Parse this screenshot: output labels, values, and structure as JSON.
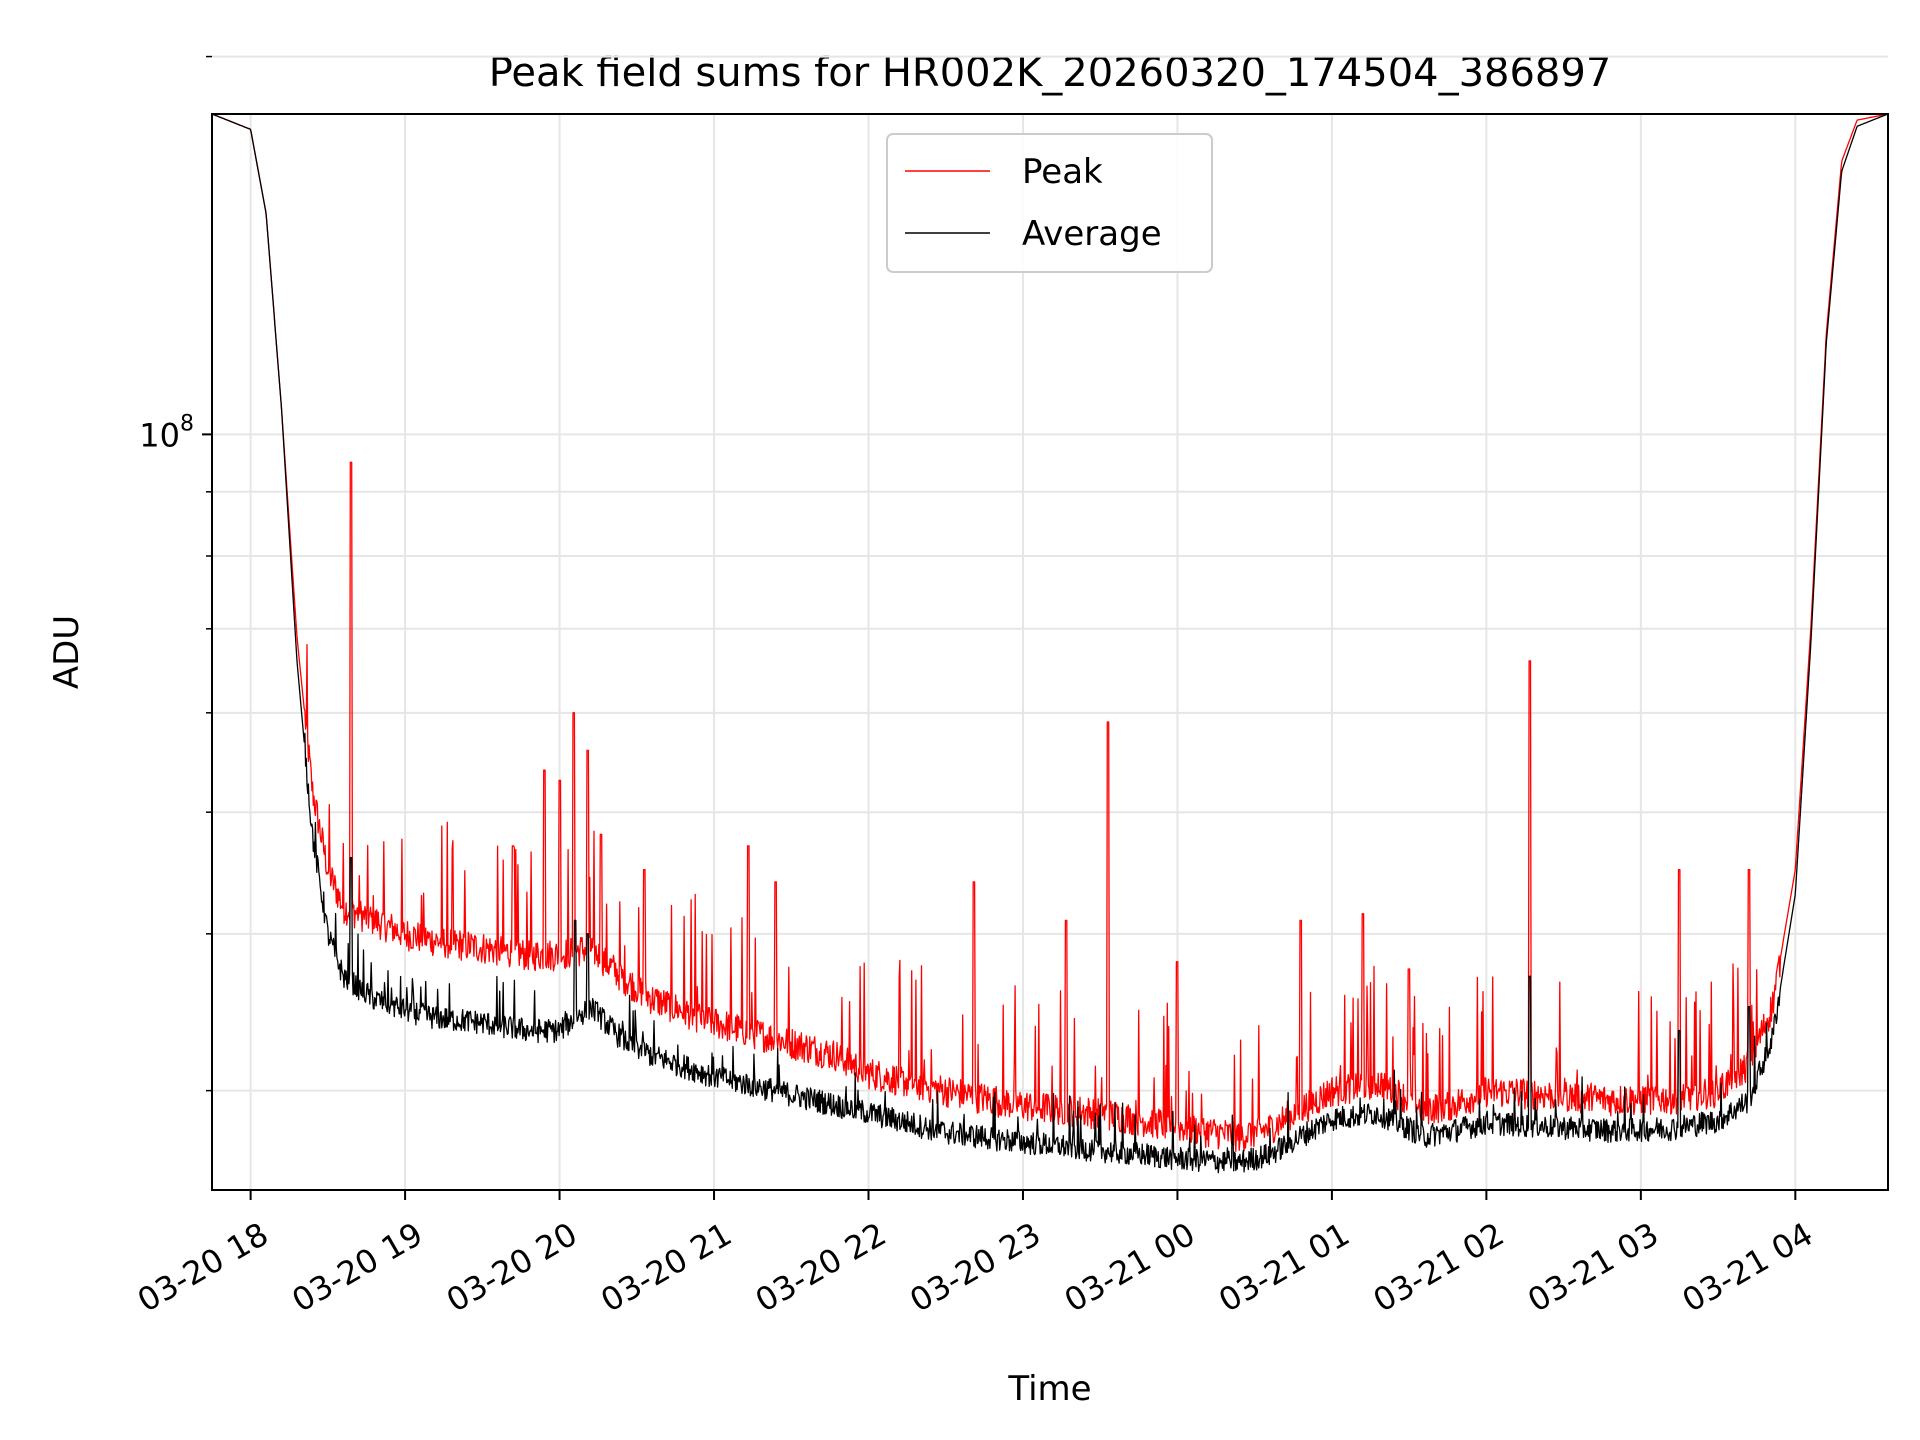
{
  "chart_data": {
    "type": "line",
    "title": "Peak field sums for HR002K_20260320_174504_386897",
    "xlabel": "Time",
    "ylabel": "ADU",
    "yscale": "log",
    "ylim": [
      25000000,
      180000000
    ],
    "xlim_hours": [
      17.75,
      28.6
    ],
    "grid": true,
    "legend_position": "upper center",
    "x_ticks": [
      {
        "hour": 18,
        "label": "03-20 18"
      },
      {
        "hour": 19,
        "label": "03-20 19"
      },
      {
        "hour": 20,
        "label": "03-20 20"
      },
      {
        "hour": 21,
        "label": "03-20 21"
      },
      {
        "hour": 22,
        "label": "03-20 22"
      },
      {
        "hour": 23,
        "label": "03-20 23"
      },
      {
        "hour": 24,
        "label": "03-21 00"
      },
      {
        "hour": 25,
        "label": "03-21 01"
      },
      {
        "hour": 26,
        "label": "03-21 02"
      },
      {
        "hour": 27,
        "label": "03-21 03"
      },
      {
        "hour": 28,
        "label": "03-21 04"
      }
    ],
    "y_major_tick": {
      "value": 100000000,
      "base": "10",
      "exponent": "8"
    },
    "y_minor_ticks": [
      30000000,
      40000000,
      50000000,
      60000000,
      70000000,
      80000000,
      90000000,
      200000000
    ],
    "series": [
      {
        "name": "Peak",
        "color": "#ff0000",
        "x_hours": [
          17.75,
          18.0,
          18.1,
          18.2,
          18.3,
          18.4,
          18.5,
          18.6,
          18.8,
          19.0,
          19.2,
          19.5,
          19.8,
          20.0,
          20.2,
          20.4,
          20.6,
          21.0,
          21.4,
          21.8,
          22.0,
          22.5,
          23.0,
          23.5,
          24.0,
          24.4,
          24.6,
          24.8,
          25.0,
          25.3,
          25.6,
          25.8,
          26.0,
          26.4,
          26.8,
          27.2,
          27.5,
          27.7,
          27.85,
          28.0,
          28.1,
          28.2,
          28.3,
          28.4,
          28.6
        ],
        "values": [
          180000000,
          175000000,
          150000000,
          105000000,
          69000000,
          52000000,
          45000000,
          42000000,
          41000000,
          40000000,
          39500000,
          39000000,
          38500000,
          38500000,
          39000000,
          37000000,
          35500000,
          34000000,
          33000000,
          32000000,
          31000000,
          30000000,
          29200000,
          28800000,
          28100000,
          27600000,
          28000000,
          29000000,
          30000000,
          30500000,
          29000000,
          29300000,
          30000000,
          29800000,
          29500000,
          29600000,
          30000000,
          31500000,
          35000000,
          45000000,
          70000000,
          120000000,
          165000000,
          178000000,
          180000000
        ],
        "spikes": [
          {
            "x_hour": 18.65,
            "value": 95000000
          },
          {
            "x_hour": 18.28,
            "value": 72000000
          },
          {
            "x_hour": 18.35,
            "value": 58000000
          },
          {
            "x_hour": 19.7,
            "value": 47000000
          },
          {
            "x_hour": 19.9,
            "value": 54000000
          },
          {
            "x_hour": 20.0,
            "value": 53000000
          },
          {
            "x_hour": 20.09,
            "value": 60000000
          },
          {
            "x_hour": 20.18,
            "value": 56000000
          },
          {
            "x_hour": 20.27,
            "value": 48000000
          },
          {
            "x_hour": 20.55,
            "value": 45000000
          },
          {
            "x_hour": 21.22,
            "value": 47000000
          },
          {
            "x_hour": 21.4,
            "value": 44000000
          },
          {
            "x_hour": 22.68,
            "value": 44000000
          },
          {
            "x_hour": 23.28,
            "value": 41000000
          },
          {
            "x_hour": 23.55,
            "value": 59000000
          },
          {
            "x_hour": 24.0,
            "value": 38000000
          },
          {
            "x_hour": 24.8,
            "value": 41000000
          },
          {
            "x_hour": 25.2,
            "value": 41500000
          },
          {
            "x_hour": 25.5,
            "value": 37500000
          },
          {
            "x_hour": 26.28,
            "value": 66000000
          },
          {
            "x_hour": 27.25,
            "value": 45000000
          },
          {
            "x_hour": 27.7,
            "value": 45000000
          }
        ]
      },
      {
        "name": "Average",
        "color": "#000000",
        "x_hours": [
          17.75,
          18.0,
          18.1,
          18.2,
          18.3,
          18.4,
          18.5,
          18.6,
          18.8,
          19.0,
          19.2,
          19.5,
          19.8,
          20.0,
          20.2,
          20.4,
          20.6,
          21.0,
          21.4,
          21.8,
          22.0,
          22.5,
          23.0,
          23.5,
          24.0,
          24.4,
          24.6,
          24.8,
          25.0,
          25.3,
          25.6,
          25.8,
          26.0,
          26.4,
          26.8,
          27.2,
          27.5,
          27.7,
          27.85,
          28.0,
          28.1,
          28.2,
          28.3,
          28.4,
          28.6
        ],
        "values": [
          180000000,
          175000000,
          150000000,
          105000000,
          66000000,
          48000000,
          40000000,
          37000000,
          35500000,
          34800000,
          34300000,
          34000000,
          33500000,
          33500000,
          35000000,
          33000000,
          32000000,
          30800000,
          30000000,
          29200000,
          28800000,
          27800000,
          27300000,
          26900000,
          26500000,
          26300000,
          26700000,
          27600000,
          28500000,
          28800000,
          27600000,
          27900000,
          28300000,
          28100000,
          27900000,
          28000000,
          28400000,
          29500000,
          33000000,
          43000000,
          68000000,
          118000000,
          162000000,
          176000000,
          180000000
        ],
        "spikes": [
          {
            "x_hour": 18.65,
            "value": 46000000
          },
          {
            "x_hour": 20.1,
            "value": 41000000
          },
          {
            "x_hour": 20.18,
            "value": 40000000
          },
          {
            "x_hour": 26.28,
            "value": 37000000
          },
          {
            "x_hour": 27.25,
            "value": 33500000
          },
          {
            "x_hour": 27.7,
            "value": 35000000
          }
        ]
      }
    ]
  }
}
